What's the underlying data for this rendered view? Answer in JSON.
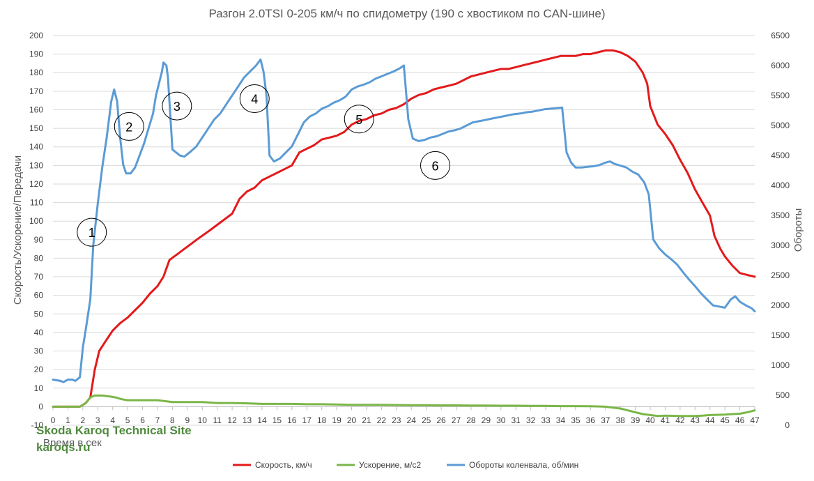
{
  "chart_data": {
    "type": "line",
    "title": "Разгон 2.0TSI 0-205 км/ч по спидометру (190 с хвостиком по CAN-шине)",
    "xlabel": "Время в сек",
    "ylabel_left": "Скорость/Ускорение/Передачи",
    "ylabel_right": "Обороты",
    "xlim": [
      0,
      47
    ],
    "xticks": [
      "0",
      "1",
      "2",
      "3",
      "4",
      "5",
      "6",
      "7",
      "8",
      "9",
      "10",
      "11",
      "12",
      "13",
      "14",
      "15",
      "16",
      "17",
      "18",
      "19",
      "20",
      "21",
      "22",
      "23",
      "24",
      "25",
      "26",
      "27",
      "28",
      "29",
      "30",
      "31",
      "32",
      "33",
      "34",
      "35",
      "36",
      "37",
      "38",
      "39",
      "40",
      "41",
      "42",
      "43",
      "44",
      "45",
      "46",
      "47"
    ],
    "ylim_left": [
      -10,
      200
    ],
    "yticks_left": [
      "-10",
      "0",
      "10",
      "20",
      "30",
      "40",
      "50",
      "60",
      "70",
      "80",
      "90",
      "100",
      "110",
      "120",
      "130",
      "140",
      "150",
      "160",
      "170",
      "180",
      "190",
      "200"
    ],
    "ylim_right": [
      0,
      6500
    ],
    "yticks_right": [
      "0",
      "500",
      "1000",
      "1500",
      "2000",
      "2500",
      "3000",
      "3500",
      "4000",
      "4500",
      "5000",
      "5500",
      "6000",
      "6500"
    ],
    "grid": "horizontal",
    "legend_position": "bottom",
    "series": [
      {
        "name": "Скорость, км/ч",
        "axis": "left",
        "color": "#e31a1c",
        "points": [
          [
            0,
            0
          ],
          [
            1,
            0
          ],
          [
            1.8,
            0
          ],
          [
            2.2,
            2
          ],
          [
            2.5,
            5
          ],
          [
            2.8,
            20
          ],
          [
            3.1,
            30
          ],
          [
            3.5,
            35
          ],
          [
            4,
            41
          ],
          [
            4.5,
            45
          ],
          [
            5,
            48
          ],
          [
            5.5,
            52
          ],
          [
            6,
            56
          ],
          [
            6.5,
            61
          ],
          [
            7,
            65
          ],
          [
            7.4,
            70
          ],
          [
            7.8,
            79
          ],
          [
            8.3,
            82
          ],
          [
            8.8,
            85
          ],
          [
            9.3,
            88
          ],
          [
            9.8,
            91
          ],
          [
            10.5,
            95
          ],
          [
            11,
            98
          ],
          [
            11.5,
            101
          ],
          [
            12,
            104
          ],
          [
            12.5,
            112
          ],
          [
            13,
            116
          ],
          [
            13.5,
            118
          ],
          [
            14,
            122
          ],
          [
            14.5,
            124
          ],
          [
            15,
            126
          ],
          [
            15.5,
            128
          ],
          [
            16,
            130
          ],
          [
            16.5,
            137
          ],
          [
            17,
            139
          ],
          [
            17.5,
            141
          ],
          [
            18,
            144
          ],
          [
            18.5,
            145
          ],
          [
            19,
            146
          ],
          [
            19.5,
            148
          ],
          [
            20,
            152
          ],
          [
            20.5,
            154
          ],
          [
            21,
            155
          ],
          [
            21.5,
            157
          ],
          [
            22,
            158
          ],
          [
            22.5,
            160
          ],
          [
            23,
            161
          ],
          [
            23.5,
            163
          ],
          [
            24,
            166
          ],
          [
            24.5,
            168
          ],
          [
            25,
            169
          ],
          [
            25.5,
            171
          ],
          [
            26,
            172
          ],
          [
            26.5,
            173
          ],
          [
            27,
            174
          ],
          [
            27.5,
            176
          ],
          [
            28,
            178
          ],
          [
            28.5,
            179
          ],
          [
            29,
            180
          ],
          [
            29.5,
            181
          ],
          [
            30,
            182
          ],
          [
            30.5,
            182
          ],
          [
            31,
            183
          ],
          [
            31.5,
            184
          ],
          [
            32,
            185
          ],
          [
            32.5,
            186
          ],
          [
            33,
            187
          ],
          [
            33.5,
            188
          ],
          [
            34,
            189
          ],
          [
            34.5,
            189
          ],
          [
            35,
            189
          ],
          [
            35.5,
            190
          ],
          [
            36,
            190
          ],
          [
            36.5,
            191
          ],
          [
            37,
            192
          ],
          [
            37.5,
            192
          ],
          [
            38,
            191
          ],
          [
            38.5,
            189
          ],
          [
            39,
            186
          ],
          [
            39.5,
            180
          ],
          [
            39.8,
            174
          ],
          [
            40,
            162
          ],
          [
            40.5,
            152
          ],
          [
            41,
            147
          ],
          [
            41.5,
            141
          ],
          [
            42,
            133
          ],
          [
            42.5,
            126
          ],
          [
            43,
            117
          ],
          [
            43.5,
            110
          ],
          [
            44,
            103
          ],
          [
            44.3,
            92
          ],
          [
            44.7,
            85
          ],
          [
            45,
            81
          ],
          [
            45.5,
            76
          ],
          [
            46,
            72
          ],
          [
            46.5,
            71
          ],
          [
            47,
            70
          ]
        ]
      },
      {
        "name": "Ускорение, м/с2",
        "axis": "left",
        "color": "#7ab648",
        "points": [
          [
            0,
            0
          ],
          [
            1,
            0
          ],
          [
            1.8,
            0
          ],
          [
            2.2,
            2
          ],
          [
            2.5,
            5
          ],
          [
            2.8,
            6
          ],
          [
            3.3,
            6
          ],
          [
            3.8,
            5.5
          ],
          [
            4.2,
            5
          ],
          [
            4.6,
            4
          ],
          [
            5,
            3.5
          ],
          [
            6,
            3.5
          ],
          [
            7,
            3.5
          ],
          [
            8,
            2.5
          ],
          [
            9,
            2.5
          ],
          [
            10,
            2.5
          ],
          [
            11,
            2
          ],
          [
            12,
            2
          ],
          [
            13,
            1.8
          ],
          [
            14,
            1.5
          ],
          [
            15,
            1.5
          ],
          [
            16,
            1.5
          ],
          [
            17,
            1.3
          ],
          [
            18,
            1.3
          ],
          [
            19,
            1.2
          ],
          [
            20,
            1
          ],
          [
            21,
            1
          ],
          [
            22,
            1
          ],
          [
            23,
            0.9
          ],
          [
            24,
            0.8
          ],
          [
            25,
            0.8
          ],
          [
            26,
            0.7
          ],
          [
            27,
            0.7
          ],
          [
            28,
            0.6
          ],
          [
            29,
            0.6
          ],
          [
            30,
            0.5
          ],
          [
            31,
            0.5
          ],
          [
            32,
            0.4
          ],
          [
            33,
            0.4
          ],
          [
            34,
            0.3
          ],
          [
            35,
            0.3
          ],
          [
            36,
            0.2
          ],
          [
            37,
            0
          ],
          [
            37.5,
            -0.5
          ],
          [
            38,
            -1
          ],
          [
            38.5,
            -2
          ],
          [
            39,
            -3
          ],
          [
            39.5,
            -4
          ],
          [
            40,
            -4.5
          ],
          [
            40.5,
            -5
          ],
          [
            41,
            -4.8
          ],
          [
            42,
            -5
          ],
          [
            43,
            -5
          ],
          [
            43.5,
            -4.8
          ],
          [
            44,
            -4.5
          ],
          [
            45,
            -4.3
          ],
          [
            45.5,
            -4
          ],
          [
            46,
            -3.8
          ],
          [
            46.5,
            -3
          ],
          [
            47,
            -2
          ]
        ]
      },
      {
        "name": "Обороты коленвала, об/мин",
        "axis": "right",
        "color": "#5b9bd5",
        "points": [
          [
            0,
            760
          ],
          [
            0.5,
            740
          ],
          [
            0.7,
            720
          ],
          [
            1,
            760
          ],
          [
            1.3,
            760
          ],
          [
            1.5,
            740
          ],
          [
            1.6,
            760
          ],
          [
            1.8,
            800
          ],
          [
            2,
            1300
          ],
          [
            2.2,
            1600
          ],
          [
            2.5,
            2100
          ],
          [
            2.7,
            3000
          ],
          [
            3,
            3700
          ],
          [
            3.3,
            4300
          ],
          [
            3.6,
            4800
          ],
          [
            3.9,
            5400
          ],
          [
            4.1,
            5600
          ],
          [
            4.3,
            5400
          ],
          [
            4.5,
            4800
          ],
          [
            4.7,
            4350
          ],
          [
            4.9,
            4200
          ],
          [
            5.2,
            4200
          ],
          [
            5.5,
            4300
          ],
          [
            5.8,
            4500
          ],
          [
            6.1,
            4700
          ],
          [
            6.4,
            4950
          ],
          [
            6.7,
            5200
          ],
          [
            6.9,
            5500
          ],
          [
            7.1,
            5700
          ],
          [
            7.3,
            5900
          ],
          [
            7.4,
            6050
          ],
          [
            7.6,
            6000
          ],
          [
            7.7,
            5800
          ],
          [
            8,
            4600
          ],
          [
            8.5,
            4500
          ],
          [
            8.8,
            4480
          ],
          [
            9.2,
            4560
          ],
          [
            9.6,
            4650
          ],
          [
            10,
            4800
          ],
          [
            10.4,
            4950
          ],
          [
            10.8,
            5100
          ],
          [
            11.2,
            5200
          ],
          [
            11.6,
            5350
          ],
          [
            12,
            5500
          ],
          [
            12.4,
            5650
          ],
          [
            12.8,
            5800
          ],
          [
            13.2,
            5900
          ],
          [
            13.6,
            6000
          ],
          [
            13.9,
            6100
          ],
          [
            14.1,
            5900
          ],
          [
            14.3,
            5500
          ],
          [
            14.5,
            4500
          ],
          [
            14.8,
            4400
          ],
          [
            15.2,
            4450
          ],
          [
            15.6,
            4550
          ],
          [
            16,
            4650
          ],
          [
            16.4,
            4850
          ],
          [
            16.8,
            5050
          ],
          [
            17.2,
            5150
          ],
          [
            17.6,
            5200
          ],
          [
            18,
            5280
          ],
          [
            18.4,
            5320
          ],
          [
            18.8,
            5380
          ],
          [
            19.2,
            5420
          ],
          [
            19.6,
            5480
          ],
          [
            20,
            5600
          ],
          [
            20.4,
            5650
          ],
          [
            20.8,
            5680
          ],
          [
            21.2,
            5720
          ],
          [
            21.6,
            5780
          ],
          [
            22,
            5820
          ],
          [
            22.4,
            5860
          ],
          [
            22.8,
            5900
          ],
          [
            23.2,
            5950
          ],
          [
            23.5,
            6000
          ],
          [
            23.8,
            5100
          ],
          [
            24.1,
            4780
          ],
          [
            24.5,
            4740
          ],
          [
            24.9,
            4760
          ],
          [
            25.3,
            4800
          ],
          [
            25.7,
            4820
          ],
          [
            26.1,
            4860
          ],
          [
            26.5,
            4900
          ],
          [
            26.9,
            4920
          ],
          [
            27.3,
            4950
          ],
          [
            27.7,
            5000
          ],
          [
            28.1,
            5050
          ],
          [
            28.5,
            5070
          ],
          [
            28.9,
            5090
          ],
          [
            29.3,
            5110
          ],
          [
            29.7,
            5130
          ],
          [
            30.1,
            5150
          ],
          [
            30.5,
            5170
          ],
          [
            30.9,
            5190
          ],
          [
            31.3,
            5200
          ],
          [
            31.7,
            5220
          ],
          [
            32.1,
            5230
          ],
          [
            32.5,
            5250
          ],
          [
            32.9,
            5270
          ],
          [
            33.3,
            5280
          ],
          [
            33.7,
            5290
          ],
          [
            34.1,
            5300
          ],
          [
            34.4,
            4550
          ],
          [
            34.7,
            4380
          ],
          [
            35,
            4300
          ],
          [
            35.4,
            4300
          ],
          [
            35.8,
            4310
          ],
          [
            36.2,
            4320
          ],
          [
            36.6,
            4340
          ],
          [
            37,
            4380
          ],
          [
            37.3,
            4400
          ],
          [
            37.6,
            4360
          ],
          [
            38,
            4330
          ],
          [
            38.4,
            4300
          ],
          [
            38.8,
            4230
          ],
          [
            39.2,
            4180
          ],
          [
            39.6,
            4050
          ],
          [
            39.9,
            3850
          ],
          [
            40.2,
            3100
          ],
          [
            40.6,
            2950
          ],
          [
            41,
            2850
          ],
          [
            41.4,
            2770
          ],
          [
            41.8,
            2680
          ],
          [
            42.2,
            2550
          ],
          [
            42.6,
            2430
          ],
          [
            43,
            2320
          ],
          [
            43.4,
            2200
          ],
          [
            43.8,
            2100
          ],
          [
            44.2,
            2000
          ],
          [
            44.6,
            1980
          ],
          [
            45,
            1960
          ],
          [
            45.4,
            2100
          ],
          [
            45.7,
            2150
          ],
          [
            46,
            2060
          ],
          [
            46.4,
            2000
          ],
          [
            46.8,
            1950
          ],
          [
            47,
            1900
          ]
        ]
      }
    ],
    "annotations": [
      {
        "label": "1",
        "x": 2.6,
        "y": 94
      },
      {
        "label": "2",
        "x": 5.1,
        "y": 151
      },
      {
        "label": "3",
        "x": 8.3,
        "y": 162
      },
      {
        "label": "4",
        "x": 13.5,
        "y": 166
      },
      {
        "label": "5",
        "x": 20.5,
        "y": 155
      },
      {
        "label": "6",
        "x": 25.6,
        "y": 130
      }
    ]
  },
  "watermark": {
    "title": "Skoda Karoq Technical Site",
    "url": "karoqs.ru"
  }
}
